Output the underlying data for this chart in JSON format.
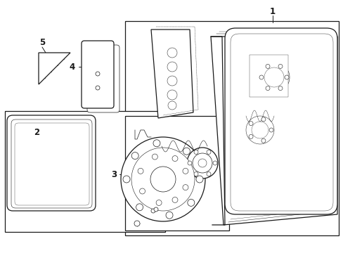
{
  "background_color": "#ffffff",
  "line_color": "#1a1a1a",
  "figsize": [
    4.89,
    3.6
  ],
  "dpi": 100,
  "lw_main": 0.9,
  "lw_thin": 0.5,
  "label_fontsize": 8.5
}
